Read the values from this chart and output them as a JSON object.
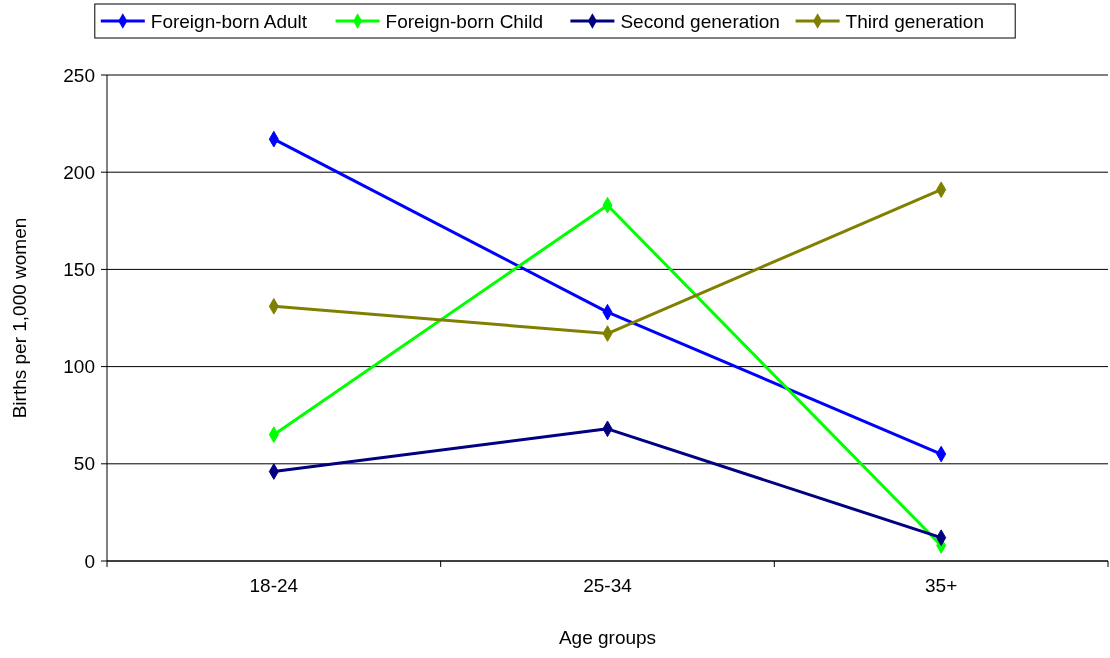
{
  "chart_data": {
    "type": "line",
    "xlabel": "Age groups",
    "ylabel": "Births per 1,000 women",
    "categories": [
      "18-24",
      "25-34",
      "35+"
    ],
    "series": [
      {
        "name": "Foreign-born Adult",
        "color": "#0000ff",
        "values": [
          217,
          128,
          55
        ]
      },
      {
        "name": "Foreign-born Child",
        "color": "#00ff00",
        "values": [
          65,
          183,
          8
        ]
      },
      {
        "name": "Second generation",
        "color": "#000080",
        "values": [
          46,
          68,
          12
        ]
      },
      {
        "name": "Third generation",
        "color": "#808000",
        "values": [
          131,
          117,
          191
        ]
      }
    ],
    "ylim": [
      0,
      250
    ],
    "yticks": [
      0,
      50,
      100,
      150,
      200,
      250
    ],
    "grid": "y",
    "legend": "top",
    "marker": "diamond",
    "line_style": "solid"
  }
}
